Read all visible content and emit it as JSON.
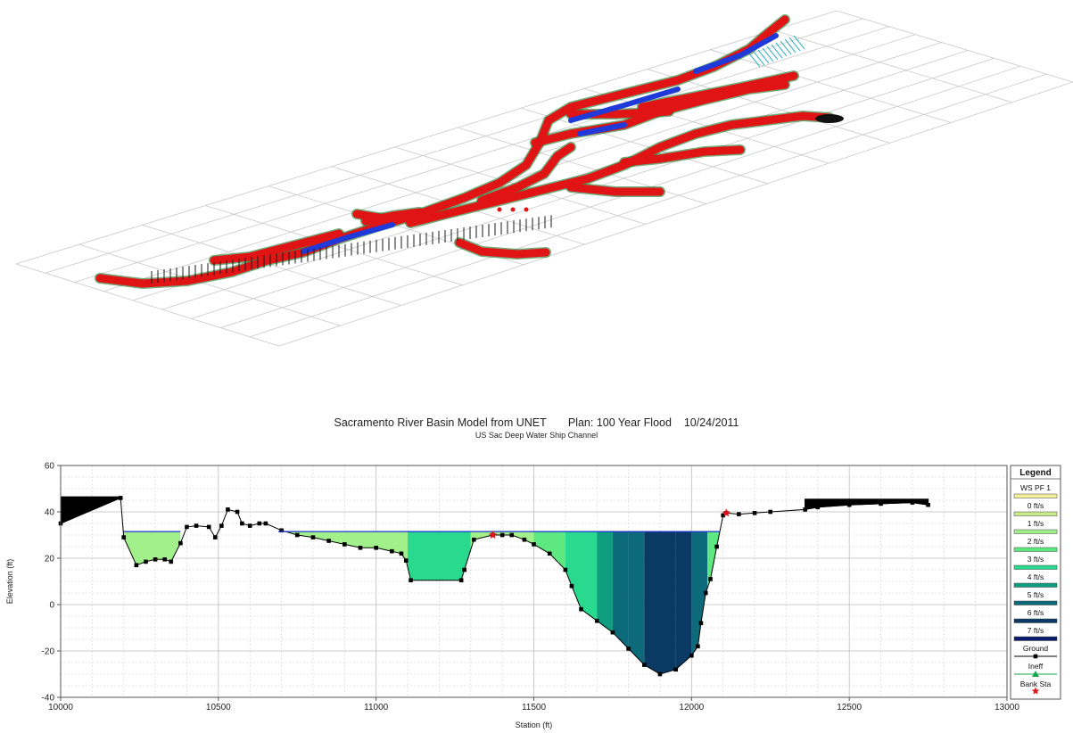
{
  "chart_data": [
    {
      "type": "3d-perspective",
      "description_visible": false
    },
    {
      "type": "area",
      "title": "Sacramento River Basin Model from UNET       Plan: 100 Year Flood    10/24/2011",
      "subtitle": "US Sac Deep Water Ship Channel",
      "xlabel": "Station (ft)",
      "ylabel": "Elevation (ft)",
      "xlim": [
        10000,
        13000
      ],
      "ylim": [
        -40,
        60
      ],
      "xticks": [
        "10000",
        "10500",
        "11000",
        "11500",
        "12000",
        "12500",
        "13000"
      ],
      "yticks": [
        "60",
        "40",
        "20",
        "0",
        "-20",
        "-40"
      ],
      "grid": true,
      "legend_title": "Legend",
      "legend_position": "right",
      "water_surface": 31.5,
      "ground": [
        [
          10000,
          35
        ],
        [
          10190,
          46
        ],
        [
          10200,
          29
        ],
        [
          10240,
          17
        ],
        [
          10270,
          18.5
        ],
        [
          10300,
          19.5
        ],
        [
          10330,
          19.5
        ],
        [
          10350,
          18.5
        ],
        [
          10380,
          26.5
        ],
        [
          10400,
          33.5
        ],
        [
          10430,
          34
        ],
        [
          10470,
          33.5
        ],
        [
          10490,
          29
        ],
        [
          10510,
          34
        ],
        [
          10530,
          41
        ],
        [
          10560,
          40
        ],
        [
          10575,
          35
        ],
        [
          10600,
          34
        ],
        [
          10630,
          35
        ],
        [
          10650,
          35
        ],
        [
          10700,
          32
        ],
        [
          10750,
          30
        ],
        [
          10800,
          29
        ],
        [
          10850,
          27.5
        ],
        [
          10900,
          26
        ],
        [
          10950,
          24.5
        ],
        [
          11000,
          24.5
        ],
        [
          11050,
          23
        ],
        [
          11080,
          22
        ],
        [
          11095,
          19
        ],
        [
          11110,
          10.5
        ],
        [
          11270,
          10.5
        ],
        [
          11280,
          15
        ],
        [
          11310,
          28
        ],
        [
          11370,
          30
        ],
        [
          11400,
          30
        ],
        [
          11430,
          30
        ],
        [
          11470,
          28
        ],
        [
          11500,
          26
        ],
        [
          11550,
          22
        ],
        [
          11600,
          15
        ],
        [
          11620,
          8
        ],
        [
          11650,
          -2
        ],
        [
          11700,
          -7
        ],
        [
          11750,
          -12
        ],
        [
          11800,
          -19
        ],
        [
          11850,
          -26
        ],
        [
          11900,
          -30
        ],
        [
          11950,
          -28
        ],
        [
          12000,
          -22
        ],
        [
          12020,
          -18
        ],
        [
          12030,
          -8
        ],
        [
          12045,
          5
        ],
        [
          12060,
          11
        ],
        [
          12080,
          25
        ],
        [
          12100,
          38.5
        ],
        [
          12110,
          39.5
        ],
        [
          12150,
          39
        ],
        [
          12200,
          39.5
        ],
        [
          12250,
          40
        ],
        [
          12360,
          41
        ],
        [
          12400,
          42
        ],
        [
          12500,
          43
        ],
        [
          12600,
          43.5
        ],
        [
          12700,
          44
        ],
        [
          12750,
          43
        ]
      ],
      "bank_stations": [
        [
          11370,
          30
        ],
        [
          12110,
          39.5
        ]
      ],
      "ineffective_areas": [
        [
          10000,
          10190,
          46.5
        ],
        [
          12360,
          12750,
          45.5
        ]
      ],
      "velocity_bands": [
        [
          10200,
          10380,
          "1 ft/s"
        ],
        [
          10700,
          11100,
          "1 ft/s"
        ],
        [
          11100,
          11300,
          "3 ft/s"
        ],
        [
          11300,
          11500,
          "1 ft/s"
        ],
        [
          11500,
          11600,
          "2 ft/s"
        ],
        [
          11600,
          11650,
          "3 ft/s"
        ],
        [
          11650,
          11700,
          "3 ft/s"
        ],
        [
          11700,
          11750,
          "4 ft/s"
        ],
        [
          11750,
          11800,
          "5 ft/s"
        ],
        [
          11800,
          11850,
          "5 ft/s"
        ],
        [
          11850,
          11950,
          "6 ft/s"
        ],
        [
          11950,
          12000,
          "6 ft/s"
        ],
        [
          12000,
          12050,
          "5 ft/s"
        ],
        [
          12050,
          12100,
          "2 ft/s"
        ]
      ],
      "legend": [
        {
          "label": "WS PF 1",
          "color": "#f4f099",
          "kind": "swatch"
        },
        {
          "label": "0 ft/s",
          "color": "#c8ec8a",
          "kind": "swatch"
        },
        {
          "label": "1 ft/s",
          "color": "#a2f08c",
          "kind": "swatch"
        },
        {
          "label": "2 ft/s",
          "color": "#5ee882",
          "kind": "swatch"
        },
        {
          "label": "3 ft/s",
          "color": "#28d98e",
          "kind": "swatch"
        },
        {
          "label": "4 ft/s",
          "color": "#0f9d7f",
          "kind": "swatch"
        },
        {
          "label": "5 ft/s",
          "color": "#0c6a7a",
          "kind": "swatch"
        },
        {
          "label": "6 ft/s",
          "color": "#0a3a64",
          "kind": "swatch"
        },
        {
          "label": "7 ft/s",
          "color": "#0a1a6c",
          "kind": "swatch"
        },
        {
          "label": "Ground",
          "color": "#000000",
          "kind": "line-marker"
        },
        {
          "label": "Ineff",
          "color": "#16a64a",
          "kind": "triangle"
        },
        {
          "label": "Bank Sta",
          "color": "#e0141e",
          "kind": "star"
        }
      ]
    }
  ]
}
